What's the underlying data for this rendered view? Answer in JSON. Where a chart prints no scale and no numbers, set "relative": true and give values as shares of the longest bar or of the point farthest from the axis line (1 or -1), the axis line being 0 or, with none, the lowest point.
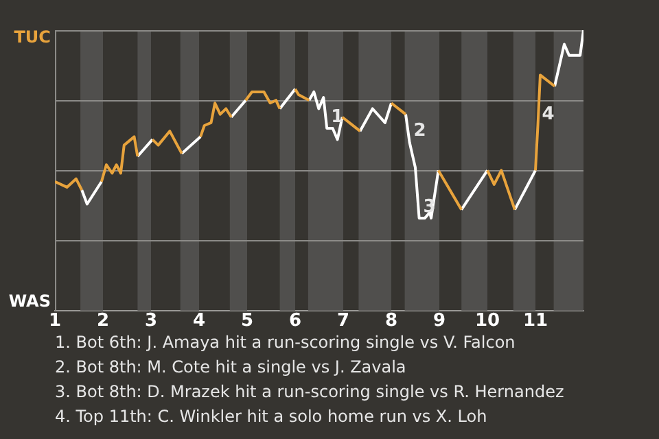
{
  "chart_data": {
    "type": "line",
    "relative": true,
    "series": [
      {
        "color": "#e8a33c",
        "x": [
          1.0,
          1.25,
          1.44,
          1.56,
          null,
          1.97,
          2.07,
          2.19,
          2.28,
          2.37,
          2.44,
          2.65,
          2.72,
          null,
          3.03,
          3.15,
          3.39,
          3.64,
          null,
          4.03,
          4.11,
          4.25,
          4.33,
          4.44,
          4.56,
          4.67,
          null,
          4.97,
          5.1,
          5.35,
          5.48,
          5.6,
          5.68,
          null,
          6.0,
          6.07,
          6.29,
          null,
          6.98,
          7.35,
          null,
          8.0,
          8.3,
          null,
          8.98,
          9.46,
          null,
          10.0,
          10.14,
          10.29,
          10.57,
          null,
          11.0,
          11.05,
          11.1,
          11.4
        ],
        "values": [
          0.46,
          0.44,
          0.47,
          0.43,
          null,
          0.46,
          0.52,
          0.49,
          0.52,
          0.49,
          0.59,
          0.62,
          0.55,
          null,
          0.61,
          0.59,
          0.64,
          0.56,
          null,
          0.62,
          0.66,
          0.67,
          0.74,
          0.7,
          0.72,
          0.69,
          null,
          0.75,
          0.78,
          0.78,
          0.74,
          0.75,
          0.72,
          null,
          0.79,
          0.77,
          0.75,
          null,
          0.69,
          0.64,
          null,
          0.74,
          0.7,
          null,
          0.5,
          0.36,
          null,
          0.5,
          0.45,
          0.5,
          0.36,
          null,
          0.5,
          0.66,
          0.84,
          0.8
        ]
      },
      {
        "color": "#ffffff",
        "x": [
          1.56,
          1.67,
          1.97,
          null,
          2.72,
          3.03,
          null,
          3.64,
          4.03,
          null,
          4.67,
          4.97,
          null,
          5.68,
          6.0,
          null,
          6.29,
          6.39,
          6.49,
          6.59,
          6.66,
          6.78,
          6.88,
          6.98,
          null,
          7.35,
          7.61,
          7.87,
          8.0,
          null,
          8.3,
          8.38,
          8.5,
          8.58,
          8.7,
          8.8,
          8.83,
          8.98,
          null,
          9.46,
          10.0,
          null,
          10.57,
          11.0,
          null,
          11.4,
          11.6,
          11.7,
          11.93,
          12.0
        ],
        "values": [
          0.43,
          0.38,
          0.46,
          null,
          0.55,
          0.61,
          null,
          0.56,
          0.62,
          null,
          0.69,
          0.75,
          null,
          0.72,
          0.79,
          null,
          0.75,
          0.78,
          0.72,
          0.76,
          0.65,
          0.65,
          0.61,
          0.69,
          null,
          0.64,
          0.72,
          0.67,
          0.74,
          null,
          0.7,
          0.6,
          0.51,
          0.33,
          0.33,
          0.35,
          0.33,
          0.5,
          null,
          0.36,
          0.5,
          null,
          0.36,
          0.5,
          null,
          0.8,
          0.95,
          0.91,
          0.91,
          1.0
        ]
      }
    ],
    "xlim": [
      1,
      12
    ],
    "xticks": [
      1,
      2,
      3,
      4,
      5,
      6,
      7,
      8,
      9,
      10,
      11
    ],
    "grid": "y",
    "bands": [
      {
        "axis": "x",
        "from": 1.53,
        "to": 2,
        "color": "#504f4d"
      },
      {
        "axis": "x",
        "from": 2.72,
        "to": 3,
        "color": "#504f4d"
      },
      {
        "axis": "x",
        "from": 3.61,
        "to": 4,
        "color": "#504f4d"
      },
      {
        "axis": "x",
        "from": 4.64,
        "to": 5,
        "color": "#504f4d"
      },
      {
        "axis": "x",
        "from": 5.68,
        "to": 6,
        "color": "#504f4d"
      },
      {
        "axis": "x",
        "from": 6.27,
        "to": 7,
        "color": "#504f4d"
      },
      {
        "axis": "x",
        "from": 7.32,
        "to": 8,
        "color": "#504f4d"
      },
      {
        "axis": "x",
        "from": 8.28,
        "to": 9,
        "color": "#504f4d"
      },
      {
        "axis": "x",
        "from": 9.46,
        "to": 10,
        "color": "#504f4d"
      },
      {
        "axis": "x",
        "from": 10.54,
        "to": 11,
        "color": "#504f4d"
      },
      {
        "axis": "x",
        "from": 11.38,
        "to": 12,
        "color": "#504f4d"
      }
    ],
    "annotations": [
      "TUC",
      "WAS",
      {
        "text": "1",
        "x": 6.66,
        "y": 0.65
      },
      {
        "text": "2",
        "x": 8.38,
        "y": 0.6
      },
      {
        "text": "3",
        "x": 8.58,
        "y": 0.33
      },
      {
        "text": "4",
        "x": 11.05,
        "y": 0.66
      },
      "1. Bot 6th: J. Amaya hit a run-scoring single vs V. Falcon",
      "2. Bot 8th: M. Cote hit a single vs J. Zavala",
      "3. Bot 8th: D. Mrazek hit a run-scoring single vs R. Hernandez",
      "4. Top 11th: C. Winkler hit a solo home run vs X. Loh"
    ]
  }
}
